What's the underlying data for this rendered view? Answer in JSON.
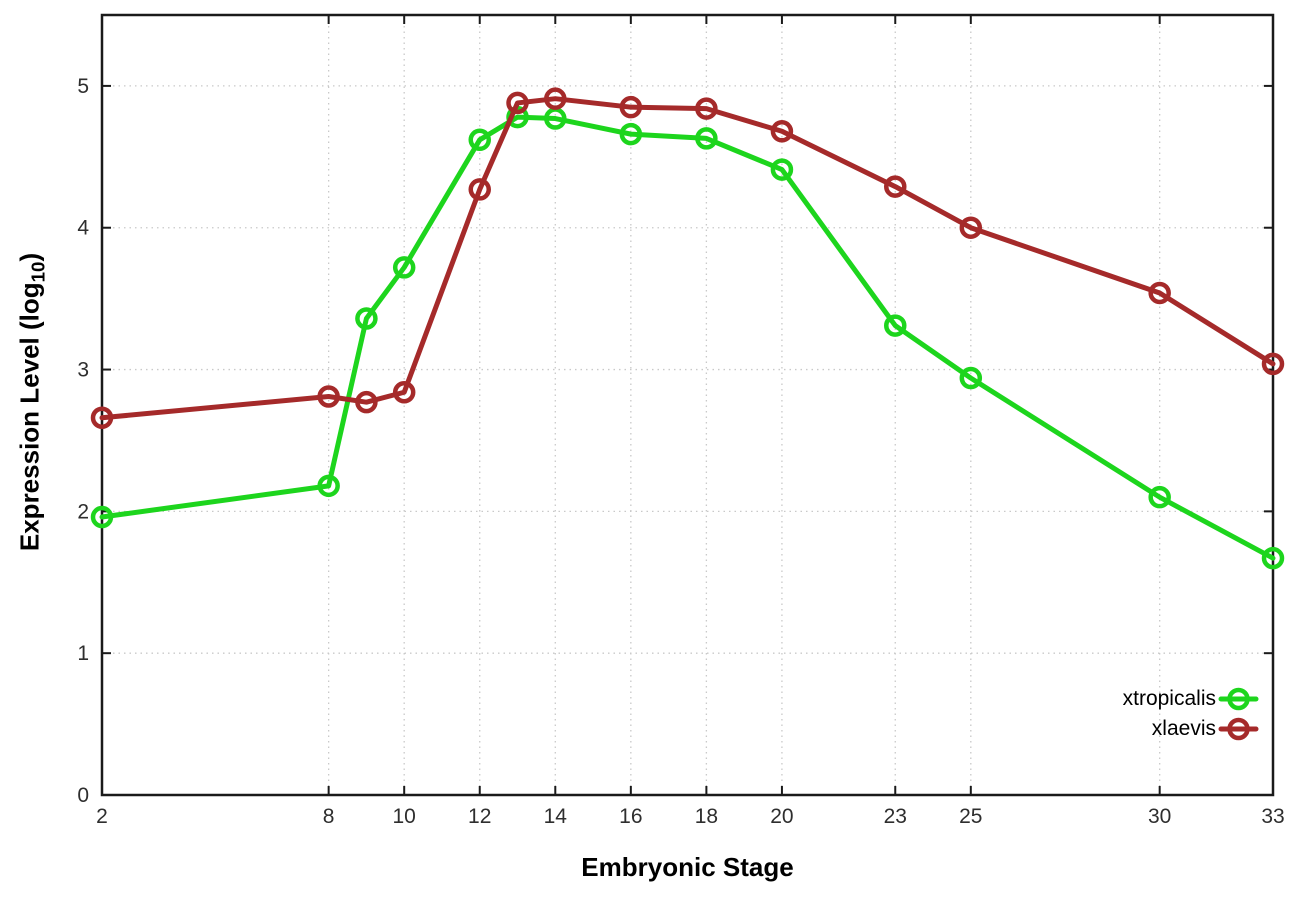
{
  "chart_data": {
    "type": "line",
    "title": "",
    "xlabel": "Embryonic Stage",
    "ylabel": "Expression Level (log10)",
    "ylabel_parts": {
      "pre": "Expression Level (log",
      "sub": "10",
      "post": ")"
    },
    "xlim": [
      2,
      33
    ],
    "ylim": [
      0,
      5.5
    ],
    "x_ticks": [
      2,
      8,
      10,
      12,
      14,
      16,
      18,
      20,
      23,
      25,
      30,
      33
    ],
    "y_ticks": [
      0,
      1,
      2,
      3,
      4,
      5
    ],
    "grid": true,
    "legend_position": "bottom-right-inside",
    "x": [
      2,
      8,
      9,
      10,
      12,
      13,
      14,
      16,
      18,
      20,
      23,
      25,
      30,
      33
    ],
    "series": [
      {
        "name": "xtropicalis",
        "color": "#1dd51d",
        "marker": "open-circle",
        "values": [
          1.96,
          2.18,
          3.36,
          3.72,
          4.62,
          4.78,
          4.77,
          4.66,
          4.63,
          4.41,
          3.31,
          2.94,
          2.1,
          1.67
        ]
      },
      {
        "name": "xlaevis",
        "color": "#a52a2a",
        "marker": "open-circle",
        "values": [
          2.66,
          2.81,
          2.77,
          2.84,
          4.27,
          4.88,
          4.91,
          4.85,
          4.84,
          4.68,
          4.29,
          4.0,
          3.54,
          3.04
        ]
      }
    ],
    "colors": {
      "axis": "#1a1a1a",
      "grid": "#c9c9c9",
      "tick_text": "#2e2e2e",
      "title_text": "#000000",
      "background": "#ffffff"
    }
  }
}
